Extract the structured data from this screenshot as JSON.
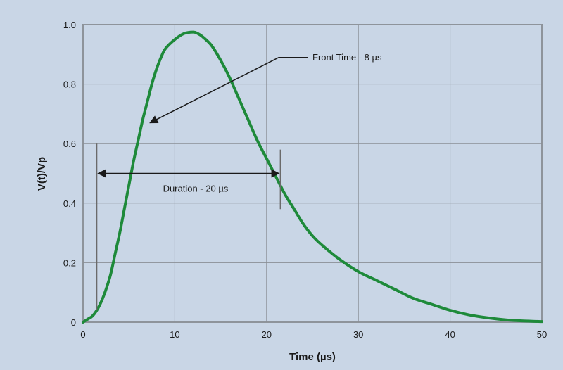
{
  "chart_data": {
    "type": "line",
    "title": "",
    "xlabel": "Time (µs)",
    "ylabel": "V(t)/Vp",
    "xlim": [
      0,
      50
    ],
    "ylim": [
      0,
      1.0
    ],
    "x_ticks": [
      0,
      10,
      20,
      30,
      40,
      50
    ],
    "y_ticks": [
      "0",
      "0.2",
      "0.4",
      "0.6",
      "0.8",
      "1.0"
    ],
    "grid": true,
    "line_color": "#1e8a3a",
    "series": [
      {
        "x": [
          0,
          0.5,
          1,
          1.5,
          2,
          2.5,
          3,
          3.5,
          4,
          4.5,
          5,
          5.5,
          6,
          6.5,
          7,
          7.5,
          8,
          8.5,
          9,
          10,
          11,
          12,
          12.5,
          13,
          14,
          15,
          16,
          17,
          18,
          19,
          20,
          21,
          22,
          23,
          24,
          25,
          26,
          28,
          30,
          32,
          34,
          36,
          38,
          40,
          42,
          44,
          46,
          48,
          50
        ],
        "values": [
          0.0,
          0.01,
          0.02,
          0.04,
          0.07,
          0.11,
          0.16,
          0.23,
          0.3,
          0.38,
          0.46,
          0.54,
          0.61,
          0.68,
          0.74,
          0.8,
          0.85,
          0.89,
          0.92,
          0.95,
          0.97,
          0.975,
          0.97,
          0.96,
          0.93,
          0.88,
          0.82,
          0.75,
          0.68,
          0.61,
          0.55,
          0.49,
          0.43,
          0.38,
          0.33,
          0.29,
          0.26,
          0.21,
          0.17,
          0.14,
          0.11,
          0.08,
          0.06,
          0.04,
          0.025,
          0.015,
          0.008,
          0.004,
          0.002
        ]
      }
    ],
    "annotations": {
      "front_time": {
        "text": "Front Time - 8 µs",
        "point": [
          7.3,
          0.67
        ],
        "text_at": [
          25,
          0.88
        ]
      },
      "duration": {
        "text": "Duration - 20 µs",
        "from": [
          1.5,
          0.5
        ],
        "to": [
          21.5,
          0.5
        ],
        "bar_from_y": 0.04,
        "bar_to_y": 0.6,
        "end_bar_from_y": 0.38,
        "end_bar_to_y": 0.58
      }
    }
  }
}
